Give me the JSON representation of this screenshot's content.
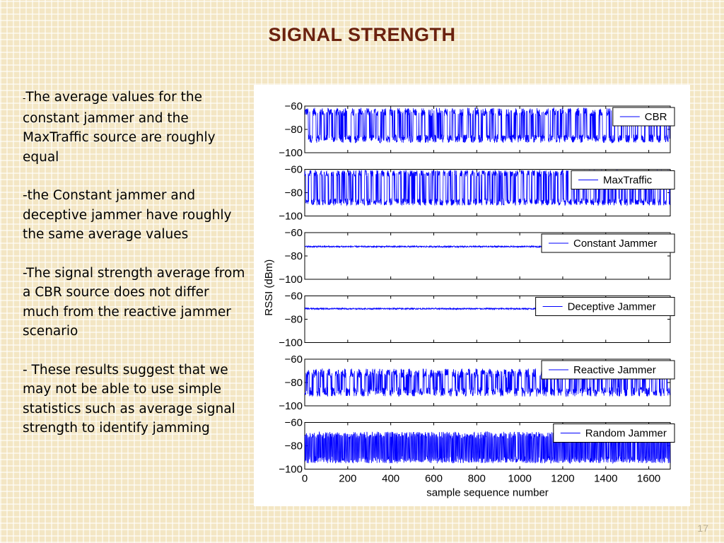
{
  "slide": {
    "title": "SIGNAL STRENGTH",
    "page_number": "17",
    "bullets": [
      {
        "dash": "-",
        "text": "The average values for the constant jammer and the MaxTraffic source are roughly equal"
      },
      {
        "dash": "",
        "text": "-the Constant jammer and deceptive jammer have roughly the same average values"
      },
      {
        "dash": "",
        "text": "-The signal strength average from a CBR source does not differ much from the reactive jammer scenario"
      },
      {
        "dash": "",
        "text": "- These results suggest that we may not be able to use simple statistics such as average signal strength to identify jamming"
      }
    ]
  },
  "chart_data": {
    "type": "line",
    "xlabel": "sample sequence number",
    "ylabel": "RSSI (dBm)",
    "xlim": [
      0,
      1700
    ],
    "x_ticks": [
      0,
      200,
      400,
      600,
      800,
      1000,
      1200,
      1400,
      1600
    ],
    "ylim": [
      -100,
      -60
    ],
    "y_ticks": [
      -60,
      -80,
      -100
    ],
    "line_color": "#0000ff",
    "legend_placement": "top-right",
    "panels": [
      {
        "name": "CBR",
        "pattern": "bursty",
        "high_level": -65,
        "low_level": -88,
        "period": 36,
        "duty": 0.45,
        "noise": 3.5
      },
      {
        "name": "MaxTraffic",
        "pattern": "bursty",
        "high_level": -63,
        "low_level": -88,
        "period": 26,
        "duty": 0.45,
        "noise": 3
      },
      {
        "name": "Constant Jammer",
        "pattern": "flat",
        "level": -72,
        "noise": 0.6
      },
      {
        "name": "Deceptive Jammer",
        "pattern": "flat",
        "level": -71,
        "noise": 0.6
      },
      {
        "name": "Reactive Jammer",
        "pattern": "bursty",
        "high_level": -72,
        "low_level": -88,
        "period": 34,
        "duty": 0.45,
        "noise": 4
      },
      {
        "name": "Random Jammer",
        "pattern": "dense",
        "high_level": -71,
        "low_level": -92,
        "period": 6,
        "duty": 0.5,
        "noise": 3
      }
    ]
  }
}
